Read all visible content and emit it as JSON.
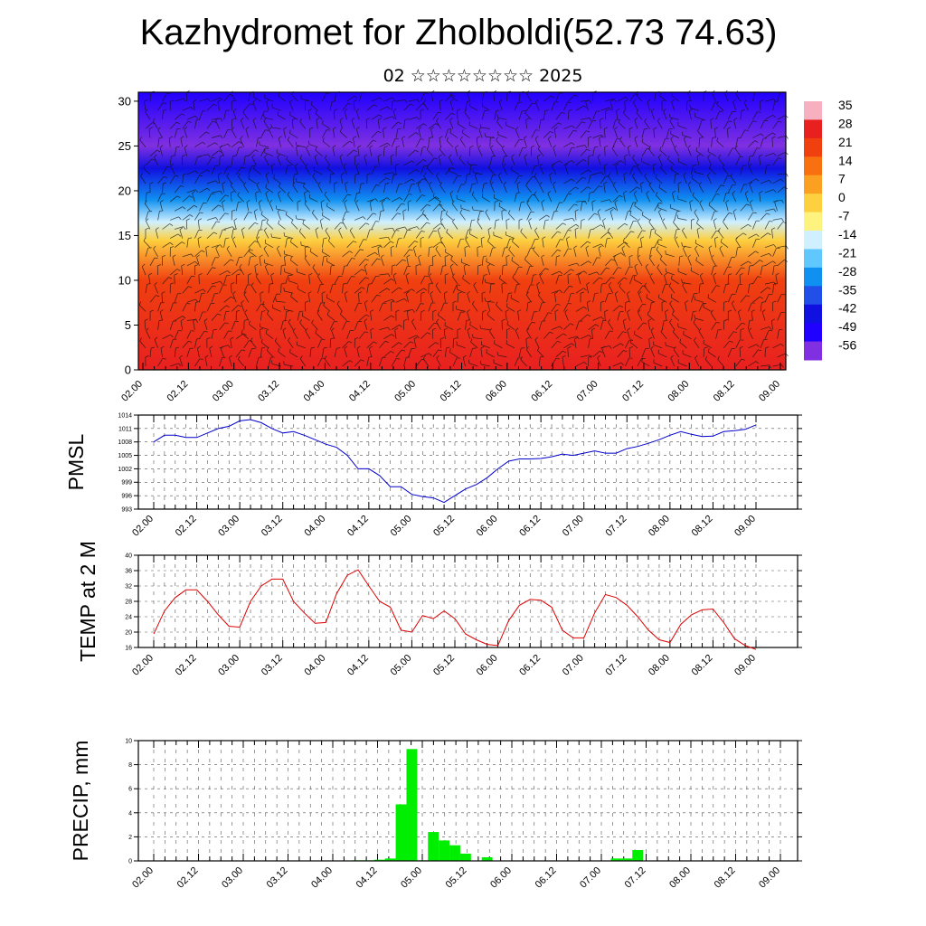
{
  "title": "Kazhydromet for Zholboldi(52.73 74.63)",
  "subtitle": "02 ☆☆☆☆☆☆☆☆ 2025",
  "chart_data": [
    {
      "type": "heatmap",
      "name": "cross-section",
      "y_ticks": [
        "0",
        "5",
        "10",
        "15",
        "20",
        "25",
        "30"
      ],
      "ylim": [
        0,
        31
      ],
      "x_ticks": [
        "02.00",
        "02.12",
        "03.00",
        "03.12",
        "04.00",
        "04.12",
        "05.00",
        "05.12",
        "06.00",
        "06.12",
        "07.00",
        "07.12",
        "08.00",
        "08.12",
        "09.00"
      ],
      "colorbar_labels": [
        "35",
        "28",
        "21",
        "14",
        "7",
        "0",
        "-7",
        "-14",
        "-21",
        "-28",
        "-35",
        "-42",
        "-49",
        "-56"
      ],
      "colorbar_colors": [
        "#f7b0c0",
        "#e82020",
        "#f04010",
        "#f87010",
        "#fba020",
        "#fdd040",
        "#fff380",
        "#d0f0ff",
        "#60c8ff",
        "#1090f0",
        "#2050e8",
        "#1010e0",
        "#2000ff",
        "#8030e0"
      ],
      "layers": [
        {
          "height": 0,
          "value": 30
        },
        {
          "height": 10,
          "value": 18
        },
        {
          "height": 14.5,
          "value": 0
        },
        {
          "height": 16.5,
          "value": -12
        },
        {
          "height": 19,
          "value": -25
        },
        {
          "height": 22.5,
          "value": -45
        },
        {
          "height": 25,
          "value": -56
        },
        {
          "height": 31,
          "value": -52
        }
      ]
    },
    {
      "type": "line",
      "ylabel": "PMSL",
      "y_ticks": [
        "993",
        "996",
        "999",
        "1002",
        "1005",
        "1008",
        "1011",
        "1014"
      ],
      "ylim": [
        993,
        1014
      ],
      "x_ticks": [
        "02.00",
        "02.12",
        "03.00",
        "03.12",
        "04.00",
        "04.12",
        "05.00",
        "05.12",
        "06.00",
        "06.12",
        "07.00",
        "07.12",
        "08.00",
        "08.12",
        "09.00"
      ],
      "series": [
        {
          "color": "#0000cc",
          "values": [
            1008.0,
            1009.5,
            1009.5,
            1009.0,
            1009.0,
            1010.0,
            1011.0,
            1011.5,
            1012.7,
            1013.0,
            1012.3,
            1011.0,
            1010.0,
            1010.3,
            1009.5,
            1008.5,
            1007.5,
            1006.8,
            1005.0,
            1002.0,
            1002.0,
            1000.5,
            998.0,
            998.0,
            996.3,
            995.8,
            995.5,
            994.5,
            996.0,
            997.5,
            998.5,
            1000.0,
            1002.0,
            1003.7,
            1004.2,
            1004.2,
            1004.3,
            1004.7,
            1005.3,
            1005.0,
            1005.5,
            1006.0,
            1005.5,
            1005.5,
            1006.5,
            1007.0,
            1007.7,
            1008.5,
            1009.5,
            1010.3,
            1009.7,
            1009.2,
            1009.3,
            1010.3,
            1010.5,
            1010.8,
            1011.8
          ]
        }
      ]
    },
    {
      "type": "line",
      "ylabel": "TEMP at 2 M",
      "y_ticks": [
        "16",
        "20",
        "24",
        "28",
        "32",
        "36",
        "40"
      ],
      "ylim": [
        16,
        40
      ],
      "x_ticks": [
        "02.00",
        "02.12",
        "03.00",
        "03.12",
        "04.00",
        "04.12",
        "05.00",
        "05.12",
        "06.00",
        "06.12",
        "07.00",
        "07.12",
        "08.00",
        "08.12",
        "09.00"
      ],
      "series": [
        {
          "color": "#dd0000",
          "values": [
            19.5,
            25.5,
            29.0,
            31.0,
            31.0,
            28.0,
            24.5,
            21.5,
            21.3,
            28.0,
            32.0,
            33.8,
            33.8,
            28.0,
            25.0,
            22.3,
            22.5,
            30.0,
            34.8,
            36.2,
            32.0,
            28.0,
            26.5,
            20.5,
            20.0,
            24.3,
            23.5,
            25.5,
            23.5,
            19.5,
            18.0,
            16.8,
            16.5,
            23.0,
            27.0,
            28.5,
            28.3,
            26.5,
            20.5,
            18.5,
            18.5,
            25.0,
            29.8,
            29.0,
            27.0,
            24.0,
            20.5,
            18.0,
            17.3,
            22.0,
            24.5,
            25.8,
            26.0,
            22.5,
            18.3,
            16.5,
            15.5
          ]
        }
      ]
    },
    {
      "type": "bar",
      "ylabel": "PRECIP, mm",
      "y_ticks": [
        "0",
        "2",
        "4",
        "6",
        "8",
        "10"
      ],
      "ylim": [
        0,
        10
      ],
      "x_ticks": [
        "02.00",
        "02.12",
        "03.00",
        "03.12",
        "04.00",
        "04.12",
        "05.00",
        "05.12",
        "06.00",
        "06.12",
        "07.00",
        "07.12",
        "08.00",
        "08.12",
        "09.00"
      ],
      "series": [
        {
          "color": "#00ee00",
          "values": [
            0,
            0,
            0,
            0,
            0,
            0,
            0,
            0,
            0,
            0,
            0,
            0,
            0,
            0,
            0,
            0,
            0,
            0,
            0,
            0.05,
            0.05,
            0.1,
            0.2,
            4.7,
            9.3,
            0.05,
            2.4,
            1.7,
            1.3,
            0.6,
            0,
            0.3,
            0,
            0,
            0,
            0,
            0,
            0,
            0,
            0,
            0,
            0,
            0,
            0.2,
            0.2,
            0.9,
            0,
            0,
            0,
            0,
            0,
            0,
            0,
            0,
            0,
            0
          ]
        }
      ]
    }
  ]
}
